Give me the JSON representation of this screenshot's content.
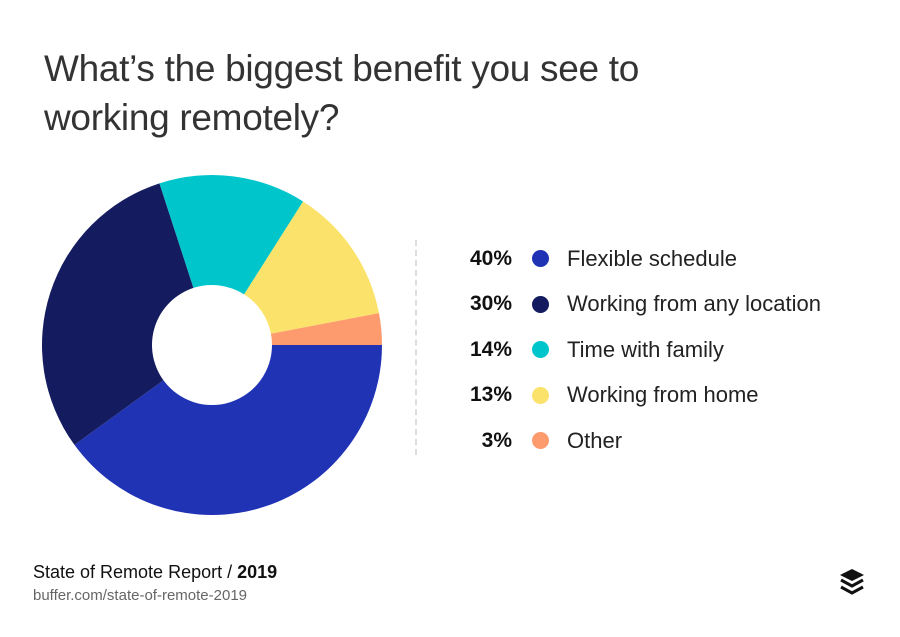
{
  "chart_data": {
    "type": "pie",
    "variant": "donut",
    "title": "What’s the biggest benefit you see to working remotely?",
    "categories": [
      "Flexible schedule",
      "Working from any location",
      "Time with family",
      "Working from home",
      "Other"
    ],
    "values": [
      40,
      30,
      14,
      13,
      3
    ],
    "value_labels": [
      "40%",
      "30%",
      "14%",
      "13%",
      "3%"
    ],
    "colors": [
      "#2033b5",
      "#141c5f",
      "#00c6cc",
      "#fbe36b",
      "#fd9b6f"
    ],
    "legend_placement": "right"
  },
  "footer": {
    "source_prefix": "State of Remote Report / ",
    "source_year": "2019",
    "url": "buffer.com/state-of-remote-2019",
    "logo_icon": "buffer-stack-icon"
  }
}
